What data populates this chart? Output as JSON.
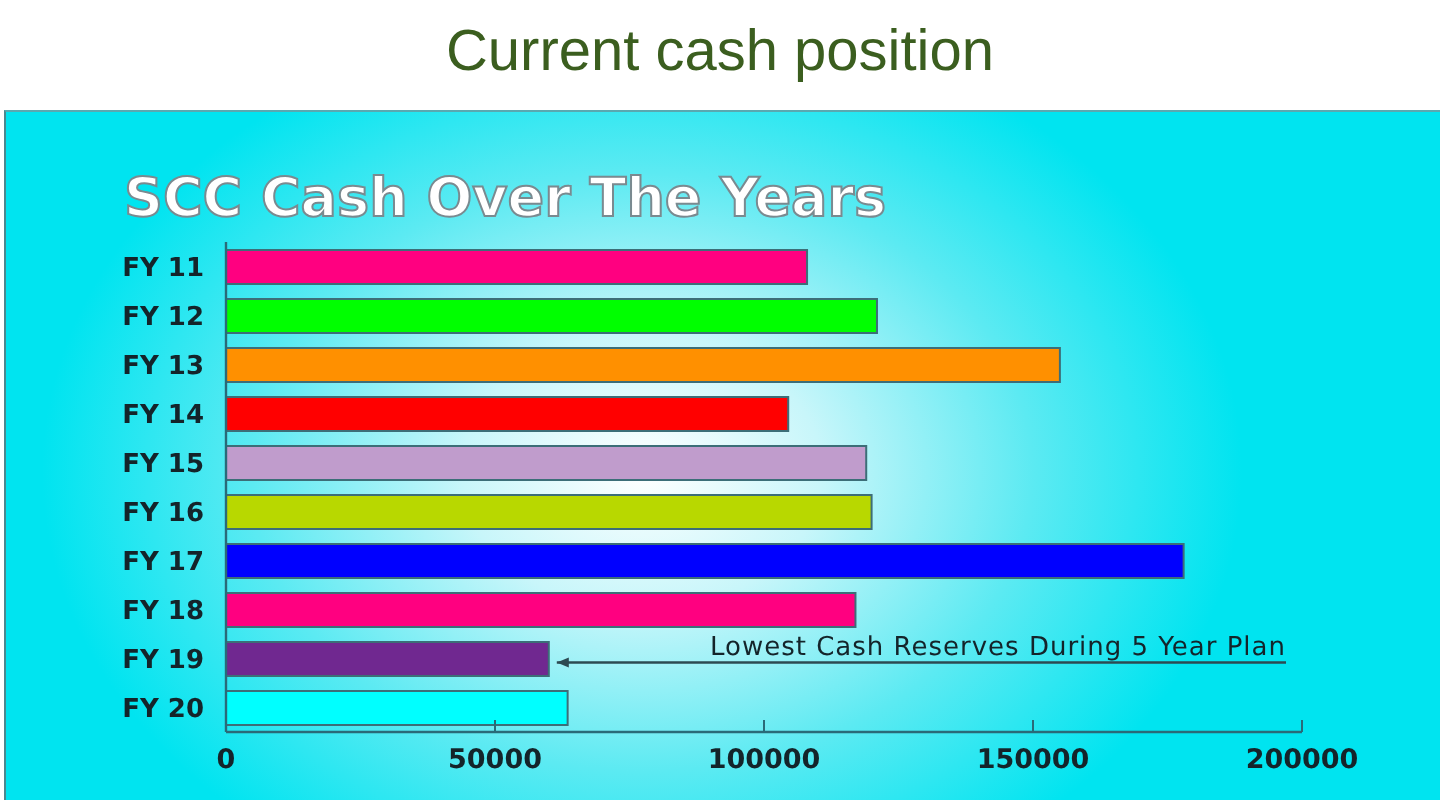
{
  "chart_data": {
    "type": "bar",
    "orientation": "horizontal",
    "title": "Current cash position",
    "subtitle": "SCC Cash Over The Years",
    "categories": [
      "FY 11",
      "FY 12",
      "FY 13",
      "FY 14",
      "FY 15",
      "FY 16",
      "FY 17",
      "FY 18",
      "FY 19",
      "FY 20"
    ],
    "values": [
      108000,
      121000,
      155000,
      104500,
      119000,
      120000,
      178000,
      117000,
      60000,
      63500
    ],
    "colors": [
      "#ff0080",
      "#00ff00",
      "#ff9000",
      "#ff0000",
      "#c09ccc",
      "#b8d800",
      "#0000ff",
      "#ff0080",
      "#702890",
      "#00ffff"
    ],
    "xlim": [
      0,
      200000
    ],
    "xticks": [
      0,
      50000,
      100000,
      150000,
      200000
    ],
    "annotations": [
      {
        "text": "Lowest Cash Reserves During 5 Year Plan",
        "x": 60000,
        "y": "FY 19"
      }
    ]
  }
}
